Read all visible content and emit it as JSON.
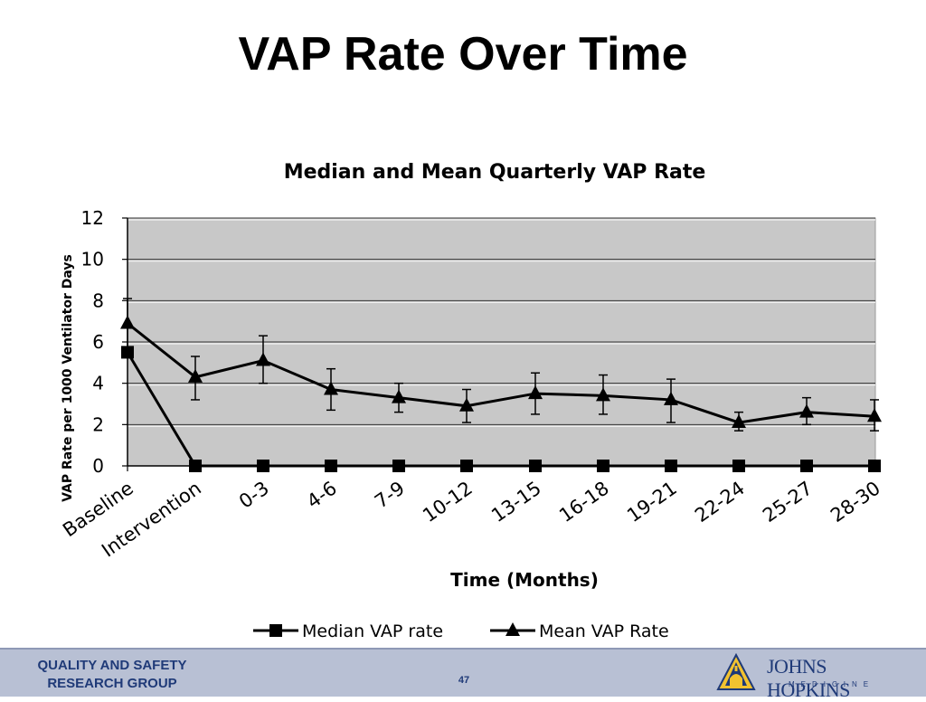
{
  "slide": {
    "title": "VAP Rate Over Time",
    "page_number": "47"
  },
  "footer": {
    "org_line1": "QUALITY AND SAFETY",
    "org_line2": "RESEARCH GROUP",
    "logo_name": "JOHNS HOPKINS",
    "logo_sub": "MEDICINE"
  },
  "colors": {
    "plot_background": "#c8c8c8",
    "series": "#000000",
    "footer_bar": "#b8c0d4",
    "footer_text": "#1f3a78"
  },
  "chart_data": {
    "type": "line",
    "title": "Median and Mean Quarterly VAP Rate",
    "xlabel": "Time (Months)",
    "ylabel": "VAP Rate per 1000 Ventilator Days",
    "ylim": [
      0,
      12
    ],
    "yticks": [
      0,
      2,
      4,
      6,
      8,
      10,
      12
    ],
    "grid": true,
    "legend_position": "bottom",
    "categories": [
      "Baseline",
      "Intervention",
      "0-3",
      "4-6",
      "7-9",
      "10-12",
      "13-15",
      "16-18",
      "19-21",
      "22-24",
      "25-27",
      "28-30"
    ],
    "series": [
      {
        "name": "Median VAP rate",
        "marker": "square",
        "values": [
          5.5,
          0,
          0,
          0,
          0,
          0,
          0,
          0,
          0,
          0,
          0,
          0
        ]
      },
      {
        "name": "Mean VAP Rate",
        "marker": "triangle",
        "values": [
          6.9,
          4.3,
          5.1,
          3.7,
          3.3,
          2.9,
          3.5,
          3.4,
          3.2,
          2.1,
          2.6,
          2.4
        ],
        "error_upper": [
          8.1,
          5.3,
          6.3,
          4.7,
          4.0,
          3.7,
          4.5,
          4.4,
          4.2,
          2.6,
          3.3,
          3.2
        ],
        "error_lower": [
          5.6,
          3.2,
          4.0,
          2.7,
          2.6,
          2.1,
          2.5,
          2.5,
          2.1,
          1.7,
          2.0,
          1.7
        ]
      }
    ]
  }
}
